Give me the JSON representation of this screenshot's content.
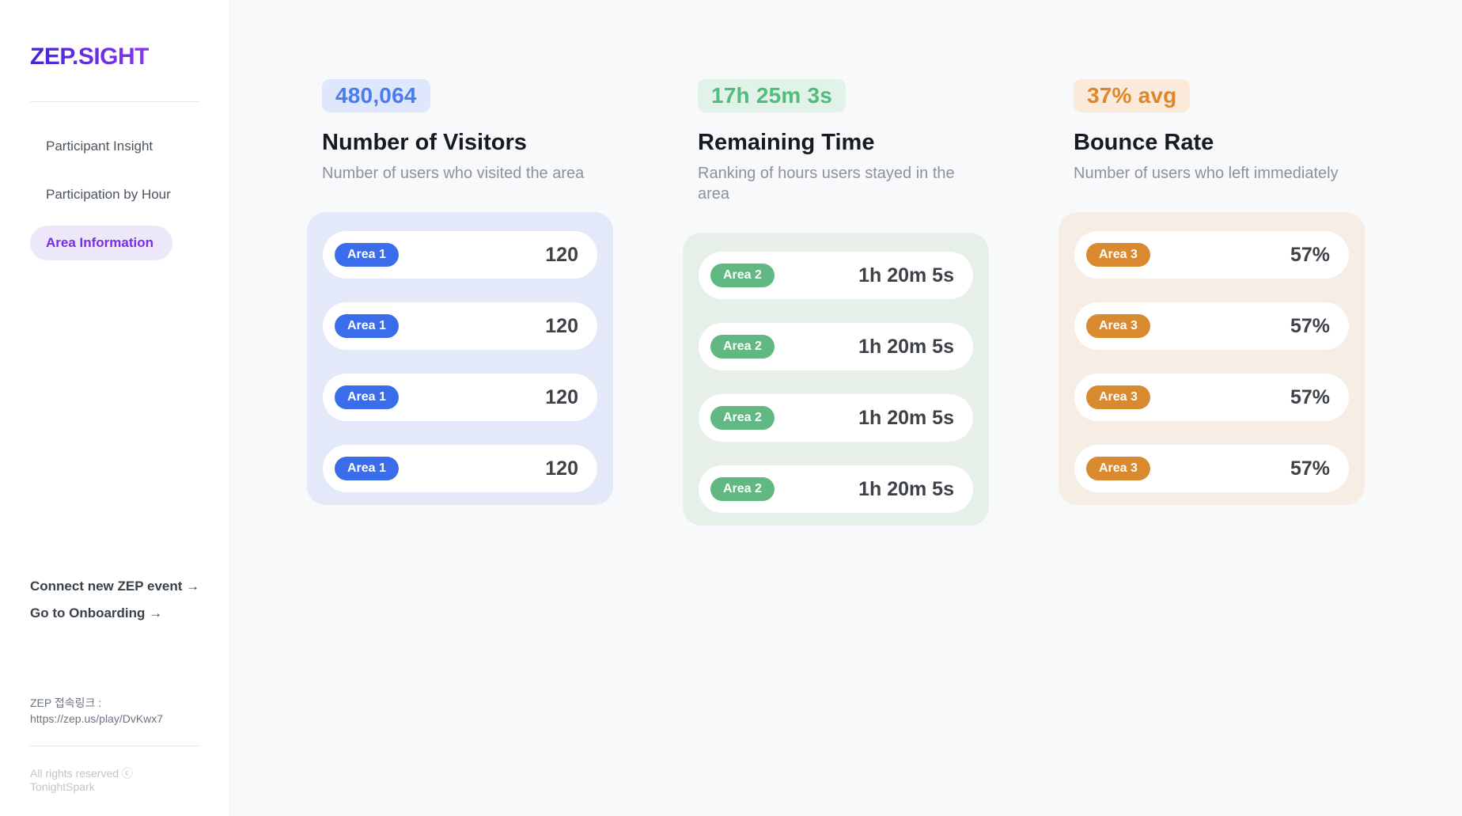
{
  "sidebar": {
    "logo": "ZEP.SIGHT",
    "nav": [
      {
        "label": "Participant Insight",
        "active": false
      },
      {
        "label": "Participation by Hour",
        "active": false
      },
      {
        "label": "Area Information",
        "active": true
      }
    ],
    "footer_links": [
      {
        "label": "Connect new ZEP event →"
      },
      {
        "label": "Go to Onboarding →"
      }
    ],
    "zep_link": {
      "label": "ZEP 접속링크 :",
      "url": "https://zep.us/play/DvKwx7"
    },
    "copyright": "All rights reserved ⓒ TonightSpark"
  },
  "main": {
    "columns": [
      {
        "badge": "480,064",
        "title": "Number of Visitors",
        "subtitle": "Number of users who visited the area",
        "colors": {
          "accent": "#3B6CE9",
          "badge_text": "#4A7BF0",
          "badge_bg": "#DEE7FB",
          "panel_bg": "#E3E9F8"
        },
        "rows": [
          {
            "label": "Area 1",
            "value": "120"
          },
          {
            "label": "Area 1",
            "value": "120"
          },
          {
            "label": "Area 1",
            "value": "120"
          },
          {
            "label": "Area 1",
            "value": "120"
          }
        ]
      },
      {
        "badge": "17h 25m 3s",
        "title": "Remaining Time",
        "subtitle": "Ranking of hours users stayed in the area",
        "colors": {
          "accent": "#62B883",
          "badge_text": "#51BD7B",
          "badge_bg": "#E1F3E8",
          "panel_bg": "#E6F0E9"
        },
        "rows": [
          {
            "label": "Area 2",
            "value": "1h 20m 5s"
          },
          {
            "label": "Area 2",
            "value": "1h 20m 5s"
          },
          {
            "label": "Area 2",
            "value": "1h 20m 5s"
          },
          {
            "label": "Area 2",
            "value": "1h 20m 5s"
          }
        ]
      },
      {
        "badge": "37% avg",
        "title": "Bounce Rate",
        "subtitle": "Number of users who left immediately",
        "colors": {
          "accent": "#D98A2F",
          "badge_text": "#E0862A",
          "badge_bg": "#FBE9D9",
          "panel_bg": "#F6EDE4"
        },
        "rows": [
          {
            "label": "Area 3",
            "value": "57%"
          },
          {
            "label": "Area 3",
            "value": "57%"
          },
          {
            "label": "Area 3",
            "value": "57%"
          },
          {
            "label": "Area 3",
            "value": "57%"
          }
        ]
      }
    ]
  }
}
